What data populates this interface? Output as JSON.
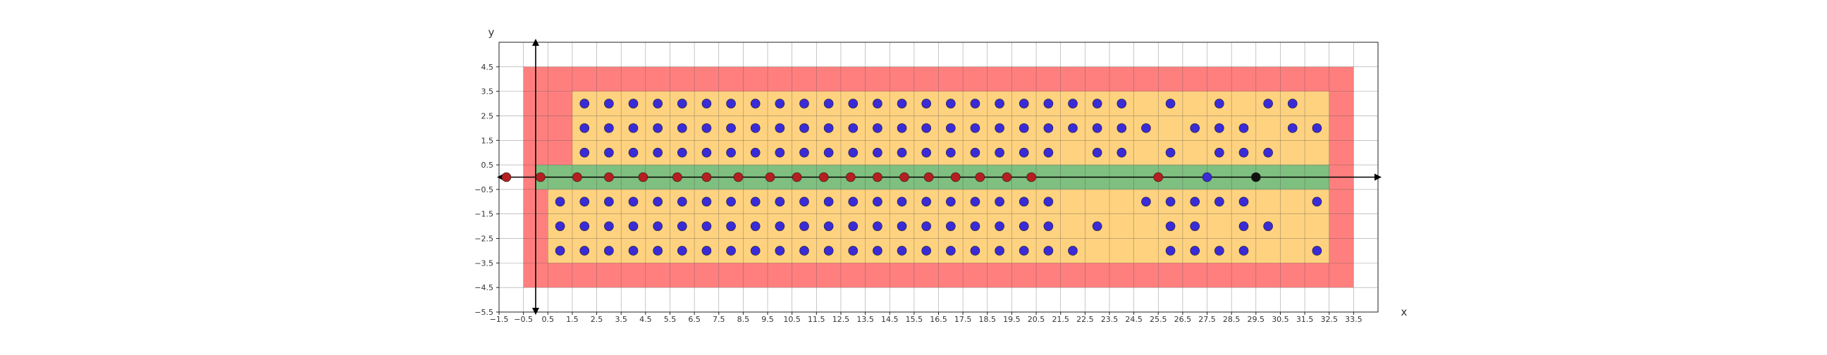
{
  "chart_data": {
    "type": "scatter",
    "title": "",
    "xlabel": "x",
    "ylabel": "y",
    "xlim": [
      -1.5,
      34.5
    ],
    "ylim": [
      -5.5,
      5.5
    ],
    "x_ticks": [
      "−1.5",
      "−0.5",
      "0.5",
      "1.5",
      "2.5",
      "3.5",
      "4.5",
      "5.5",
      "6.5",
      "7.5",
      "8.5",
      "9.5",
      "10.5",
      "11.5",
      "12.5",
      "13.5",
      "14.5",
      "15.5",
      "16.5",
      "17.5",
      "18.5",
      "19.5",
      "20.5",
      "21.5",
      "22.5",
      "23.5",
      "24.5",
      "25.5",
      "26.5",
      "27.5",
      "28.5",
      "29.5",
      "30.5",
      "31.5",
      "32.5",
      "33.5"
    ],
    "y_ticks": [
      "4.5",
      "3.5",
      "2.5",
      "1.5",
      "0.5",
      "−0.5",
      "−1.5",
      "−2.5",
      "−3.5",
      "−4.5",
      "−5.5"
    ],
    "grid": true,
    "regions": [
      {
        "name": "outer",
        "color": "#ff7f7f",
        "x": [
          -0.5,
          33.5
        ],
        "y": [
          -4.5,
          4.5
        ]
      },
      {
        "name": "upper",
        "color": "#ffd27f",
        "x": [
          1.5,
          32.5
        ],
        "y": [
          0.5,
          3.5
        ]
      },
      {
        "name": "lower",
        "color": "#ffd27f",
        "x": [
          0.5,
          32.5
        ],
        "y": [
          -3.5,
          -0.5
        ]
      },
      {
        "name": "band",
        "color": "#7fbf7f",
        "x": [
          0.0,
          32.5
        ],
        "y": [
          -0.5,
          0.5
        ]
      }
    ],
    "series": [
      {
        "color": "#3b2bd6",
        "marker": "circle",
        "points": [
          [
            2,
            3
          ],
          [
            3,
            3
          ],
          [
            4,
            3
          ],
          [
            5,
            3
          ],
          [
            6,
            3
          ],
          [
            7,
            3
          ],
          [
            8,
            3
          ],
          [
            9,
            3
          ],
          [
            10,
            3
          ],
          [
            11,
            3
          ],
          [
            12,
            3
          ],
          [
            13,
            3
          ],
          [
            14,
            3
          ],
          [
            15,
            3
          ],
          [
            16,
            3
          ],
          [
            17,
            3
          ],
          [
            18,
            3
          ],
          [
            19,
            3
          ],
          [
            20,
            3
          ],
          [
            21,
            3
          ],
          [
            22,
            3
          ],
          [
            23,
            3
          ],
          [
            24,
            3
          ],
          [
            26,
            3
          ],
          [
            28,
            3
          ],
          [
            30,
            3
          ],
          [
            31,
            3
          ],
          [
            2,
            2
          ],
          [
            3,
            2
          ],
          [
            4,
            2
          ],
          [
            5,
            2
          ],
          [
            6,
            2
          ],
          [
            7,
            2
          ],
          [
            8,
            2
          ],
          [
            9,
            2
          ],
          [
            10,
            2
          ],
          [
            11,
            2
          ],
          [
            12,
            2
          ],
          [
            13,
            2
          ],
          [
            14,
            2
          ],
          [
            15,
            2
          ],
          [
            16,
            2
          ],
          [
            17,
            2
          ],
          [
            18,
            2
          ],
          [
            19,
            2
          ],
          [
            20,
            2
          ],
          [
            21,
            2
          ],
          [
            22,
            2
          ],
          [
            23,
            2
          ],
          [
            24,
            2
          ],
          [
            25,
            2
          ],
          [
            27,
            2
          ],
          [
            28,
            2
          ],
          [
            29,
            2
          ],
          [
            31,
            2
          ],
          [
            32,
            2
          ],
          [
            2,
            1
          ],
          [
            3,
            1
          ],
          [
            4,
            1
          ],
          [
            5,
            1
          ],
          [
            6,
            1
          ],
          [
            7,
            1
          ],
          [
            8,
            1
          ],
          [
            9,
            1
          ],
          [
            10,
            1
          ],
          [
            11,
            1
          ],
          [
            12,
            1
          ],
          [
            13,
            1
          ],
          [
            14,
            1
          ],
          [
            15,
            1
          ],
          [
            16,
            1
          ],
          [
            17,
            1
          ],
          [
            18,
            1
          ],
          [
            19,
            1
          ],
          [
            20,
            1
          ],
          [
            21,
            1
          ],
          [
            23,
            1
          ],
          [
            24,
            1
          ],
          [
            26,
            1
          ],
          [
            28,
            1
          ],
          [
            29,
            1
          ],
          [
            30,
            1
          ],
          [
            1,
            -1
          ],
          [
            2,
            -1
          ],
          [
            3,
            -1
          ],
          [
            4,
            -1
          ],
          [
            5,
            -1
          ],
          [
            6,
            -1
          ],
          [
            7,
            -1
          ],
          [
            8,
            -1
          ],
          [
            9,
            -1
          ],
          [
            10,
            -1
          ],
          [
            11,
            -1
          ],
          [
            12,
            -1
          ],
          [
            13,
            -1
          ],
          [
            14,
            -1
          ],
          [
            15,
            -1
          ],
          [
            16,
            -1
          ],
          [
            17,
            -1
          ],
          [
            18,
            -1
          ],
          [
            19,
            -1
          ],
          [
            20,
            -1
          ],
          [
            21,
            -1
          ],
          [
            25,
            -1
          ],
          [
            26,
            -1
          ],
          [
            27,
            -1
          ],
          [
            28,
            -1
          ],
          [
            29,
            -1
          ],
          [
            32,
            -1
          ],
          [
            1,
            -2
          ],
          [
            2,
            -2
          ],
          [
            3,
            -2
          ],
          [
            4,
            -2
          ],
          [
            5,
            -2
          ],
          [
            6,
            -2
          ],
          [
            7,
            -2
          ],
          [
            8,
            -2
          ],
          [
            9,
            -2
          ],
          [
            10,
            -2
          ],
          [
            11,
            -2
          ],
          [
            12,
            -2
          ],
          [
            13,
            -2
          ],
          [
            14,
            -2
          ],
          [
            15,
            -2
          ],
          [
            16,
            -2
          ],
          [
            17,
            -2
          ],
          [
            18,
            -2
          ],
          [
            19,
            -2
          ],
          [
            20,
            -2
          ],
          [
            21,
            -2
          ],
          [
            23,
            -2
          ],
          [
            26,
            -2
          ],
          [
            27,
            -2
          ],
          [
            29,
            -2
          ],
          [
            30,
            -2
          ],
          [
            1,
            -3
          ],
          [
            2,
            -3
          ],
          [
            3,
            -3
          ],
          [
            4,
            -3
          ],
          [
            5,
            -3
          ],
          [
            6,
            -3
          ],
          [
            7,
            -3
          ],
          [
            8,
            -3
          ],
          [
            9,
            -3
          ],
          [
            10,
            -3
          ],
          [
            11,
            -3
          ],
          [
            12,
            -3
          ],
          [
            13,
            -3
          ],
          [
            14,
            -3
          ],
          [
            15,
            -3
          ],
          [
            16,
            -3
          ],
          [
            17,
            -3
          ],
          [
            18,
            -3
          ],
          [
            19,
            -3
          ],
          [
            20,
            -3
          ],
          [
            21,
            -3
          ],
          [
            22,
            -3
          ],
          [
            26,
            -3
          ],
          [
            27,
            -3
          ],
          [
            28,
            -3
          ],
          [
            29,
            -3
          ],
          [
            32,
            -3
          ],
          [
            27.5,
            0
          ]
        ]
      },
      {
        "color": "#b51f1f",
        "marker": "circle",
        "points": [
          [
            -1.2,
            0
          ],
          [
            0.2,
            0
          ],
          [
            1.7,
            0
          ],
          [
            3.0,
            0
          ],
          [
            4.4,
            0
          ],
          [
            5.8,
            0
          ],
          [
            7.0,
            0
          ],
          [
            8.3,
            0
          ],
          [
            9.6,
            0
          ],
          [
            10.7,
            0
          ],
          [
            11.8,
            0
          ],
          [
            12.9,
            0
          ],
          [
            14.0,
            0
          ],
          [
            15.1,
            0
          ],
          [
            16.1,
            0
          ],
          [
            17.2,
            0
          ],
          [
            18.2,
            0
          ],
          [
            19.3,
            0
          ],
          [
            20.3,
            0
          ],
          [
            25.5,
            0
          ]
        ]
      },
      {
        "color": "#111111",
        "marker": "circle",
        "points": [
          [
            29.5,
            0
          ]
        ]
      }
    ]
  }
}
